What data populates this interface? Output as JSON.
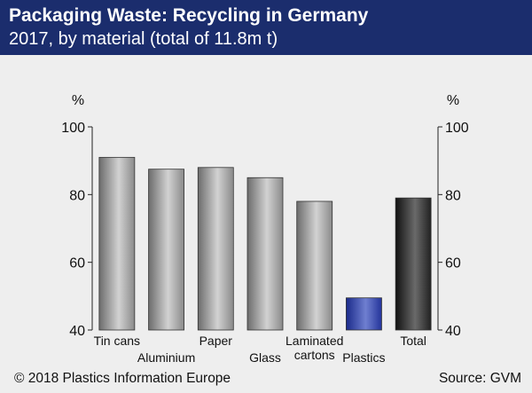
{
  "header": {
    "title": "Packaging Waste: Recycling in Germany",
    "subtitle": "2017, by material (total of 11.8m t)"
  },
  "footer": {
    "copyright": "© 2018 Plastics Information Europe",
    "source": "Source: GVM"
  },
  "colors": {
    "header_bg": "#1b2d6d",
    "gray_bar": "#9a9a9a",
    "plastics_bar": "#2b3a9c",
    "total_bar": "#333333"
  },
  "chart_data": {
    "type": "bar",
    "categories": [
      {
        "lines": [
          "Tin cans"
        ],
        "row": 0
      },
      {
        "lines": [
          "Aluminium"
        ],
        "row": 1
      },
      {
        "lines": [
          "Paper"
        ],
        "row": 0
      },
      {
        "lines": [
          "Glass"
        ],
        "row": 1
      },
      {
        "lines": [
          "Laminated",
          "cartons"
        ],
        "row": 0
      },
      {
        "lines": [
          "Plastics"
        ],
        "row": 1
      },
      {
        "lines": [
          "Total"
        ],
        "row": 0
      }
    ],
    "values": [
      91,
      87.5,
      88,
      85,
      78,
      49.5,
      79
    ],
    "bar_styles": [
      "gray",
      "gray",
      "gray",
      "gray",
      "gray",
      "blue",
      "dark"
    ],
    "yunit_left": "%",
    "yunit_right": "%",
    "ylim": [
      40,
      100
    ],
    "yticks": [
      40,
      60,
      80,
      100
    ],
    "grid": false,
    "right_axis": true
  }
}
